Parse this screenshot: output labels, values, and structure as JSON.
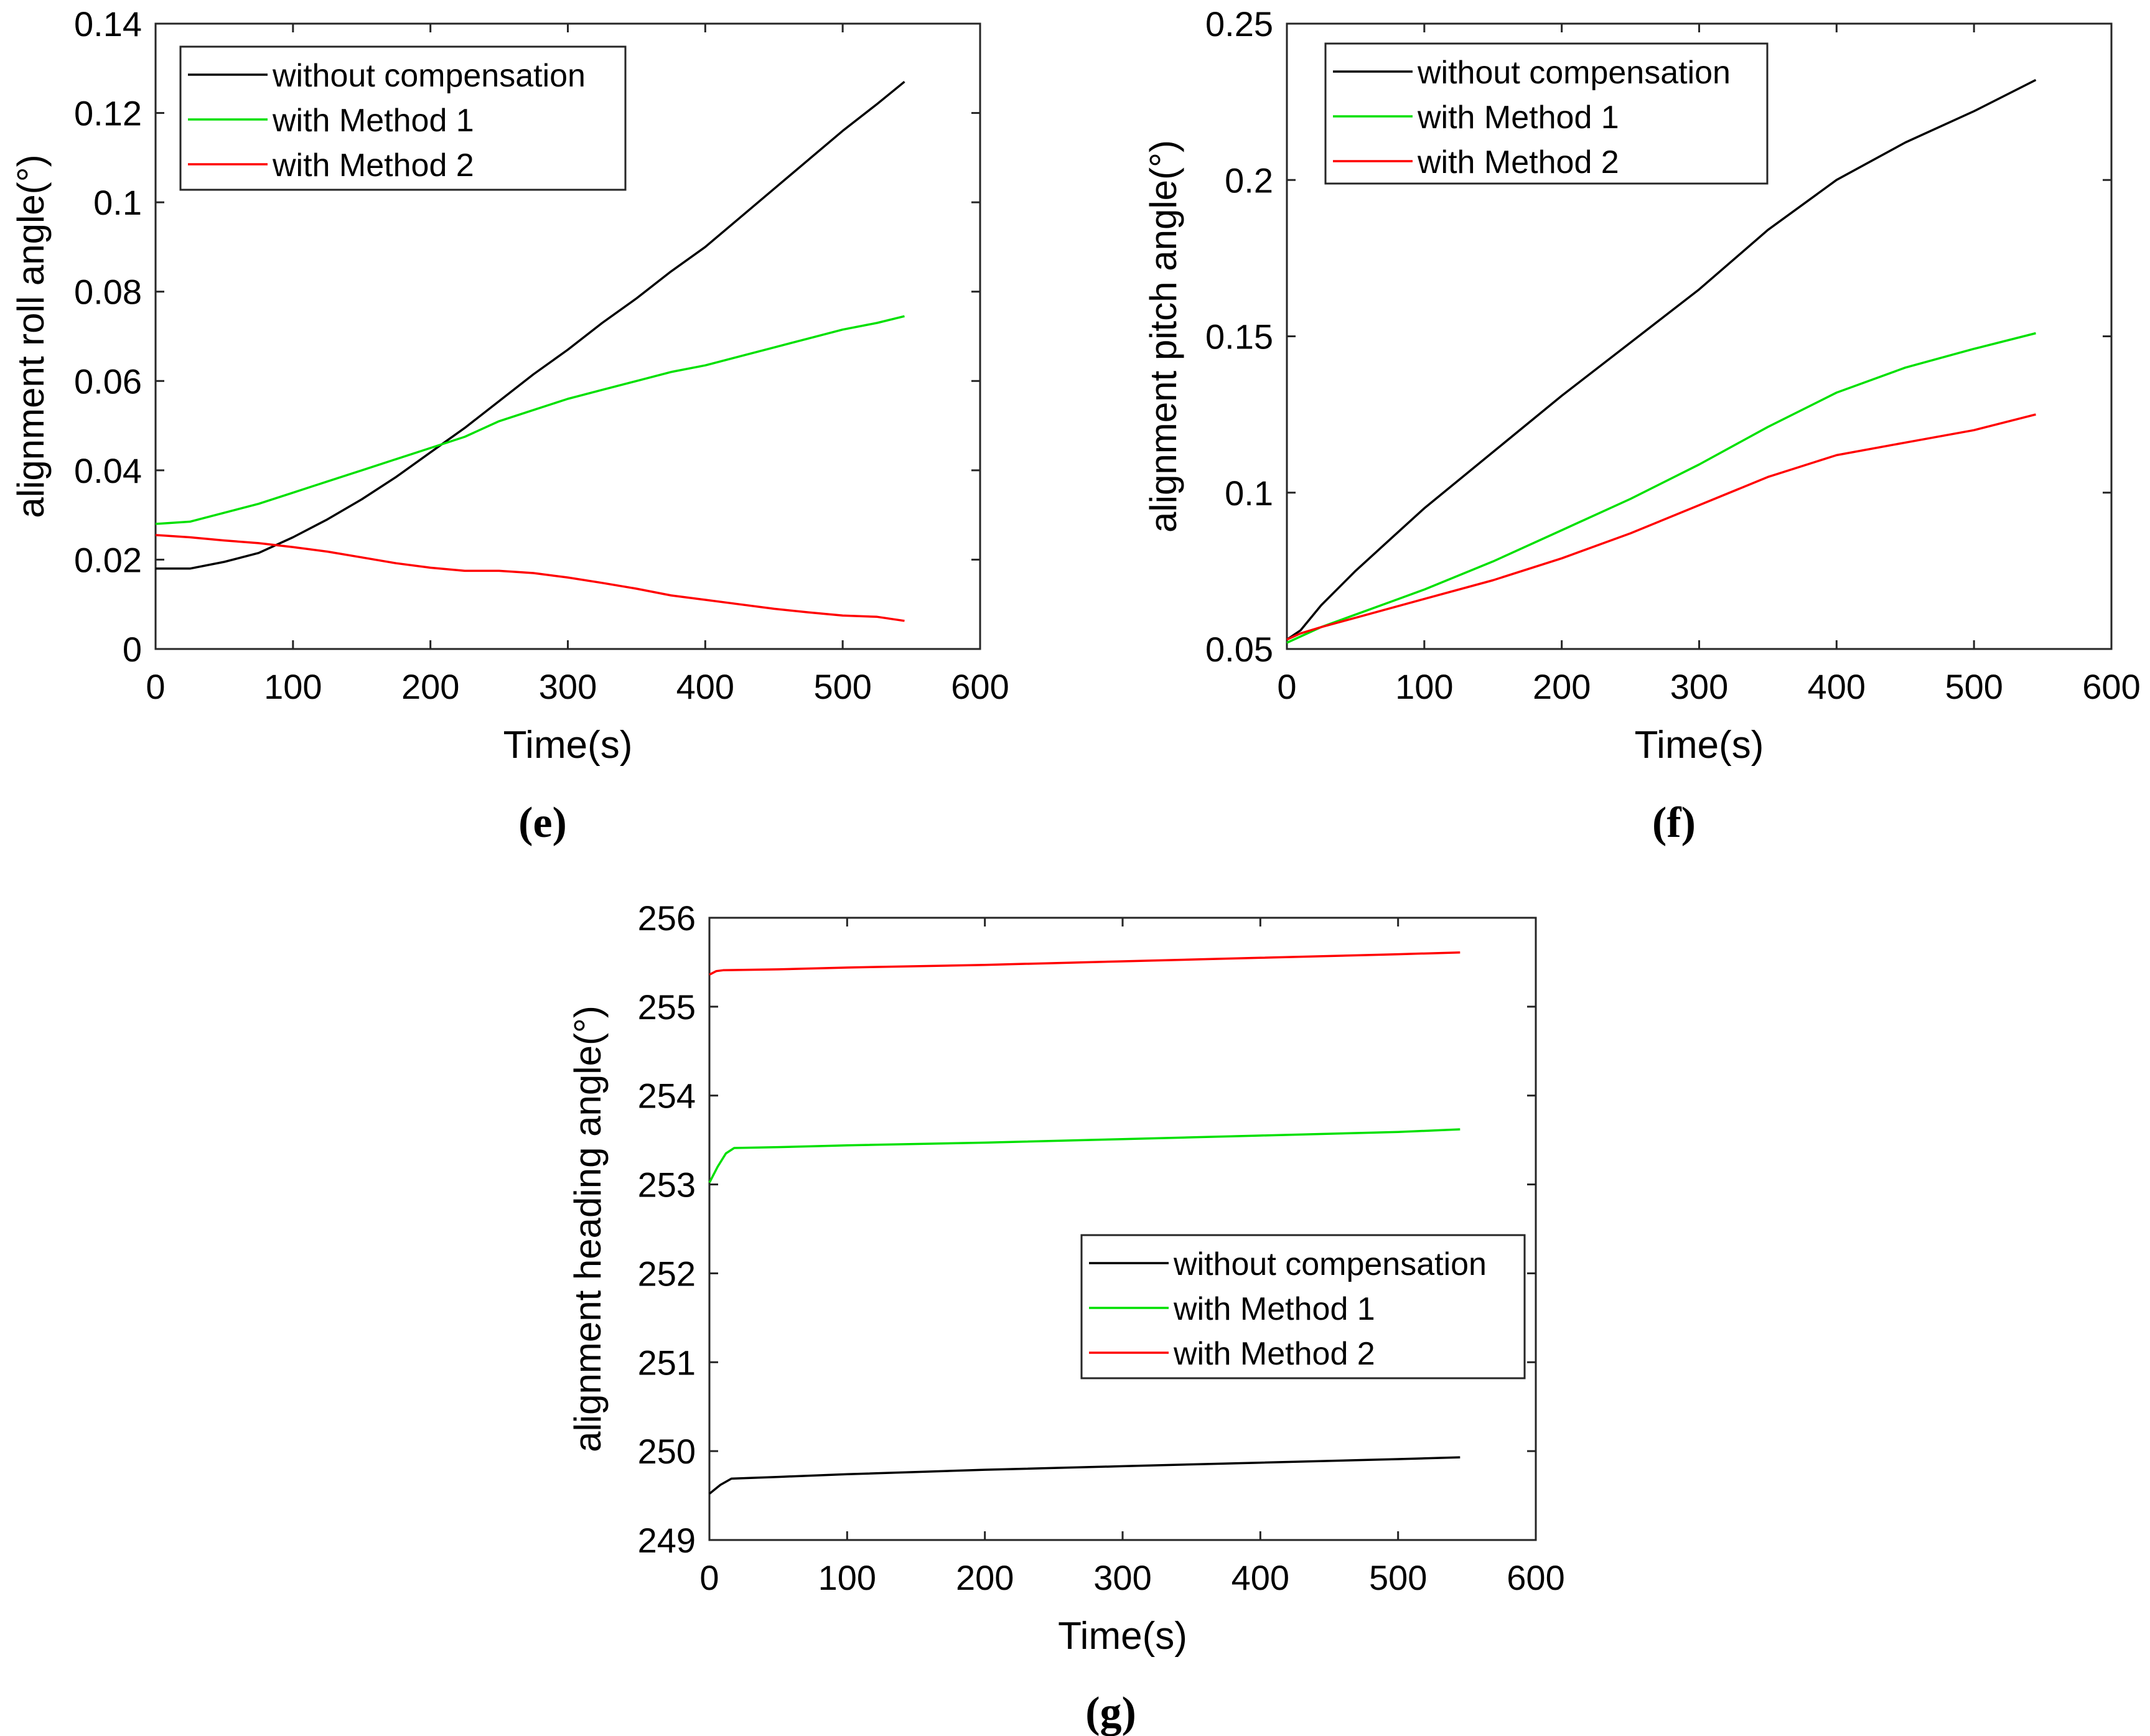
{
  "chart_data": [
    {
      "type": "line",
      "panel_label": "(e)",
      "xlabel": "Time(s)",
      "ylabel": "alignment roll angle(°)",
      "xlim": [
        0,
        600
      ],
      "ylim": [
        0,
        0.14
      ],
      "xticks": [
        0,
        100,
        200,
        300,
        400,
        500,
        600
      ],
      "xtick_labels": [
        "0",
        "100",
        "200",
        "300",
        "400",
        "500",
        "600"
      ],
      "yticks": [
        0,
        0.02,
        0.04,
        0.06,
        0.08,
        0.1,
        0.12,
        0.14
      ],
      "ytick_labels": [
        "0",
        "0.02",
        "0.04",
        "0.06",
        "0.08",
        "0.1",
        "0.12",
        "0.14"
      ],
      "legend_position": "top-left",
      "series": [
        {
          "name": "without  compensation",
          "color": "#000000",
          "x": [
            0,
            25,
            50,
            75,
            100,
            125,
            150,
            175,
            200,
            225,
            250,
            275,
            300,
            325,
            350,
            375,
            400,
            425,
            450,
            475,
            500,
            525,
            545
          ],
          "y": [
            0.018,
            0.018,
            0.0195,
            0.0215,
            0.025,
            0.029,
            0.0335,
            0.0385,
            0.044,
            0.0495,
            0.0555,
            0.0615,
            0.067,
            0.073,
            0.0785,
            0.0845,
            0.09,
            0.0965,
            0.103,
            0.1095,
            0.116,
            0.122,
            0.127
          ]
        },
        {
          "name": "with Method 1",
          "color": "#00e000",
          "x": [
            0,
            25,
            50,
            75,
            100,
            125,
            150,
            175,
            200,
            225,
            250,
            275,
            300,
            325,
            350,
            375,
            400,
            425,
            450,
            475,
            500,
            525,
            545
          ],
          "y": [
            0.028,
            0.0285,
            0.0305,
            0.0325,
            0.035,
            0.0375,
            0.04,
            0.0425,
            0.045,
            0.0475,
            0.051,
            0.0535,
            0.056,
            0.058,
            0.06,
            0.062,
            0.0635,
            0.0655,
            0.0675,
            0.0695,
            0.0715,
            0.073,
            0.0745
          ]
        },
        {
          "name": "with Method 2",
          "color": "#ff0000",
          "x": [
            0,
            25,
            50,
            75,
            100,
            125,
            150,
            175,
            200,
            225,
            250,
            275,
            300,
            325,
            350,
            375,
            400,
            425,
            450,
            475,
            500,
            525,
            545
          ],
          "y": [
            0.0255,
            0.025,
            0.0243,
            0.0237,
            0.0228,
            0.0218,
            0.0205,
            0.0192,
            0.0182,
            0.0175,
            0.0175,
            0.017,
            0.016,
            0.0148,
            0.0135,
            0.012,
            0.011,
            0.01,
            0.009,
            0.0082,
            0.0075,
            0.0072,
            0.0063
          ]
        }
      ]
    },
    {
      "type": "line",
      "panel_label": "(f)",
      "xlabel": "Time(s)",
      "ylabel": "alignment pitch angle(°)",
      "xlim": [
        0,
        600
      ],
      "ylim": [
        0.05,
        0.25
      ],
      "xticks": [
        0,
        100,
        200,
        300,
        400,
        500,
        600
      ],
      "xtick_labels": [
        "0",
        "100",
        "200",
        "300",
        "400",
        "500",
        "600"
      ],
      "yticks": [
        0.05,
        0.1,
        0.15,
        0.2,
        0.25
      ],
      "ytick_labels": [
        "0.05",
        "0.1",
        "0.15",
        "0.2",
        "0.25"
      ],
      "legend_position": "top-left",
      "series": [
        {
          "name": "without  compensation",
          "color": "#000000",
          "x": [
            0,
            10,
            25,
            50,
            75,
            100,
            150,
            200,
            250,
            300,
            350,
            400,
            450,
            500,
            545
          ],
          "y": [
            0.053,
            0.056,
            0.064,
            0.075,
            0.085,
            0.095,
            0.113,
            0.131,
            0.148,
            0.165,
            0.184,
            0.2,
            0.212,
            0.222,
            0.232
          ]
        },
        {
          "name": "with Method 1",
          "color": "#00e000",
          "x": [
            0,
            10,
            25,
            50,
            75,
            100,
            150,
            200,
            250,
            300,
            350,
            400,
            450,
            500,
            545
          ],
          "y": [
            0.052,
            0.054,
            0.057,
            0.061,
            0.065,
            0.069,
            0.078,
            0.088,
            0.098,
            0.109,
            0.121,
            0.132,
            0.14,
            0.146,
            0.151
          ]
        },
        {
          "name": "with Method 2",
          "color": "#ff0000",
          "x": [
            0,
            10,
            25,
            50,
            75,
            100,
            150,
            200,
            250,
            300,
            350,
            400,
            450,
            500,
            545
          ],
          "y": [
            0.053,
            0.055,
            0.057,
            0.06,
            0.063,
            0.066,
            0.072,
            0.079,
            0.087,
            0.096,
            0.105,
            0.112,
            0.116,
            0.12,
            0.125
          ]
        }
      ]
    },
    {
      "type": "line",
      "panel_label": "(g)",
      "xlabel": "Time(s)",
      "ylabel": "alignment heading angle(°)",
      "xlim": [
        0,
        600
      ],
      "ylim": [
        249,
        256
      ],
      "xticks": [
        0,
        100,
        200,
        300,
        400,
        500,
        600
      ],
      "xtick_labels": [
        "0",
        "100",
        "200",
        "300",
        "400",
        "500",
        "600"
      ],
      "yticks": [
        249,
        250,
        251,
        252,
        253,
        254,
        255,
        256
      ],
      "ytick_labels": [
        "249",
        "250",
        "251",
        "252",
        "253",
        "254",
        "255",
        "256"
      ],
      "legend_position": "lower-right",
      "series": [
        {
          "name": "without  compensation",
          "color": "#000000",
          "x": [
            0,
            8,
            16,
            50,
            100,
            200,
            300,
            400,
            500,
            545
          ],
          "y": [
            249.52,
            249.62,
            249.69,
            249.71,
            249.74,
            249.79,
            249.83,
            249.87,
            249.91,
            249.93
          ]
        },
        {
          "name": "with Method 1",
          "color": "#00e000",
          "x": [
            0,
            6,
            12,
            18,
            50,
            100,
            200,
            300,
            400,
            500,
            545
          ],
          "y": [
            253.02,
            253.2,
            253.35,
            253.41,
            253.42,
            253.44,
            253.47,
            253.51,
            253.55,
            253.59,
            253.62
          ]
        },
        {
          "name": "with Method 2",
          "color": "#ff0000",
          "x": [
            0,
            5,
            10,
            50,
            100,
            200,
            300,
            400,
            500,
            545
          ],
          "y": [
            255.36,
            255.4,
            255.41,
            255.42,
            255.44,
            255.47,
            255.51,
            255.55,
            255.59,
            255.61
          ]
        }
      ]
    }
  ]
}
